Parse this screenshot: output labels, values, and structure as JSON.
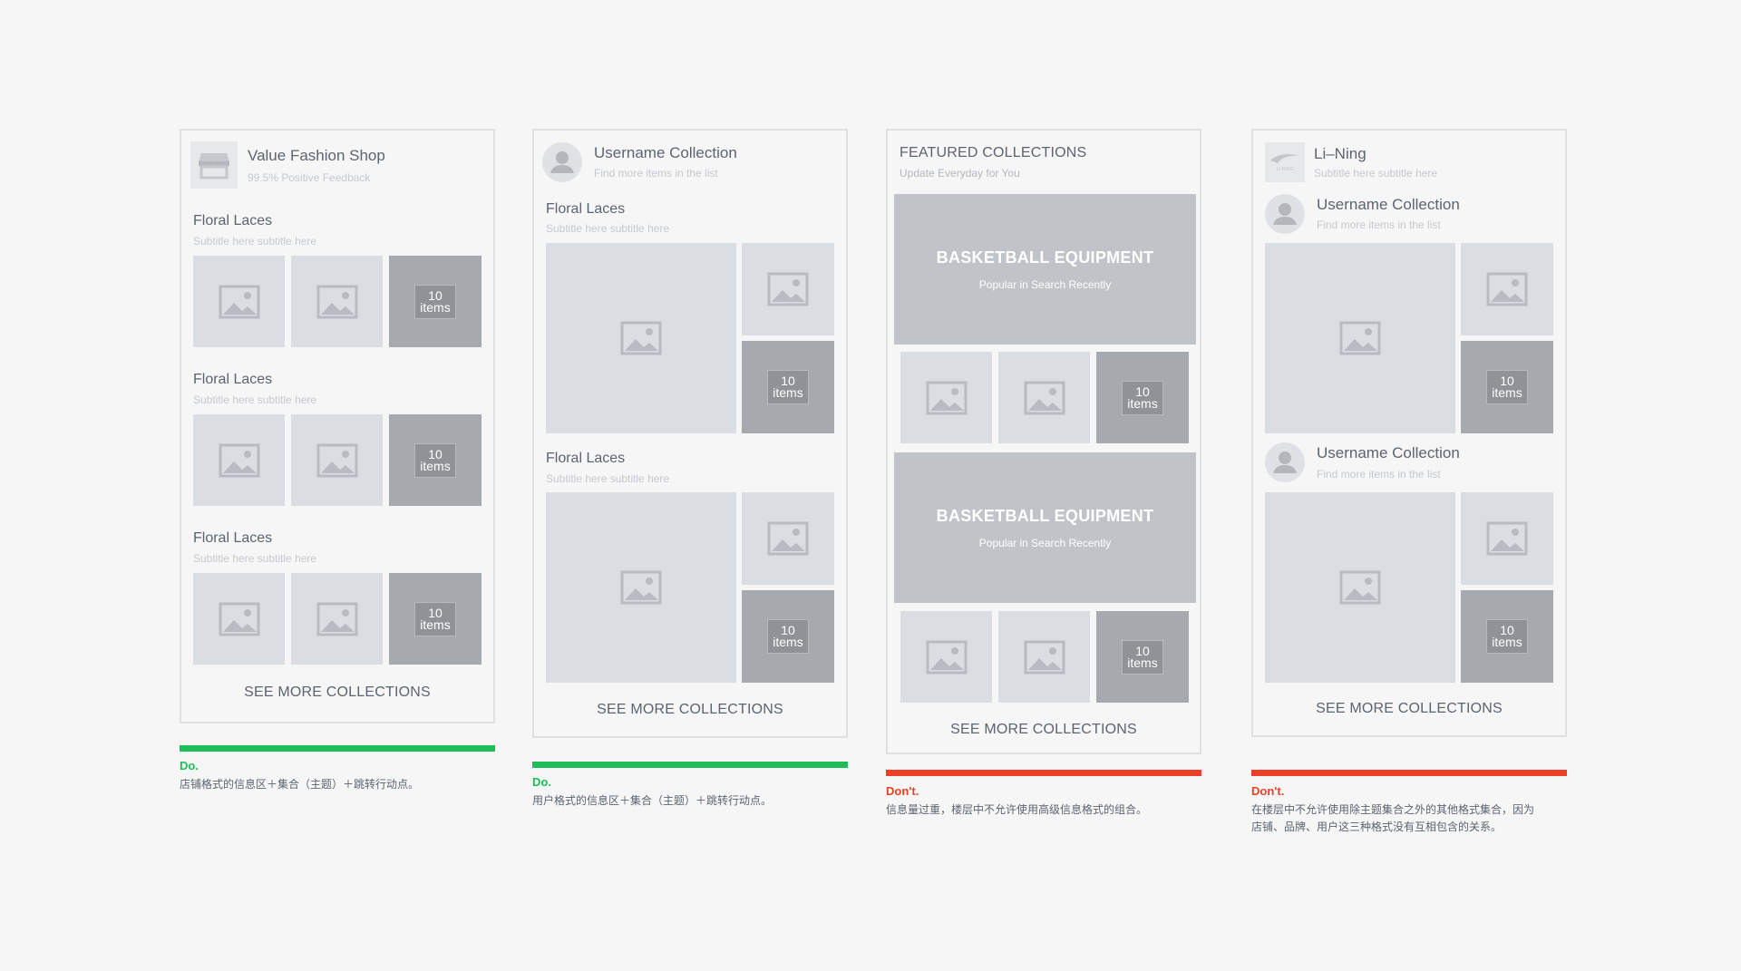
{
  "colors": {
    "do": "#1fbd5a",
    "dont": "#ea4025",
    "placeholder": "#dadde2",
    "count_tile": "#a6a9ad"
  },
  "see_more": "SEE MORE COLLECTIONS",
  "items_count": {
    "num": "10",
    "unit": "items"
  },
  "card1": {
    "shop_name": "Value Fashion Shop",
    "feedback": "99.5% Positive Feedback",
    "sections": [
      {
        "title": "Floral Laces",
        "subtitle": "Subtitle here subtitle here"
      },
      {
        "title": "Floral Laces",
        "subtitle": "Subtitle here subtitle here"
      },
      {
        "title": "Floral Laces",
        "subtitle": "Subtitle here subtitle here"
      }
    ],
    "verdict": "Do.",
    "note": "店铺格式的信息区＋集合（主题）＋跳转行动点。"
  },
  "card2": {
    "title": "Username Collection",
    "subtitle": "Find more items in the list",
    "sections": [
      {
        "title": "Floral Laces",
        "subtitle": "Subtitle here subtitle here"
      },
      {
        "title": "Floral Laces",
        "subtitle": "Subtitle here subtitle here"
      }
    ],
    "verdict": "Do.",
    "note": "用户格式的信息区＋集合（主题）＋跳转行动点。"
  },
  "card3": {
    "title": "FEATURED COLLECTIONS",
    "subtitle": "Update Everyday for You",
    "banners": [
      {
        "title": "BASKETBALL EQUIPMENT",
        "subtitle": "Popular in Search Recently"
      },
      {
        "title": "BASKETBALL EQUIPMENT",
        "subtitle": "Popular in Search Recently"
      }
    ],
    "verdict": "Don't.",
    "note": "信息量过重，楼层中不允许使用高级信息格式的组合。"
  },
  "card4": {
    "brand": "Li–Ning",
    "brand_logo_text": "LI-NING",
    "brand_subtitle": "Subtitle here subtitle here",
    "users": [
      {
        "title": "Username Collection",
        "subtitle": "Find more items in the list"
      },
      {
        "title": "Username Collection",
        "subtitle": "Find more items in the list"
      }
    ],
    "verdict": "Don't.",
    "note_line1": "在楼层中不允许使用除主题集合之外的其他格式集合，因为",
    "note_line2": "店铺、品牌、用户这三种格式没有互相包含的关系。"
  }
}
